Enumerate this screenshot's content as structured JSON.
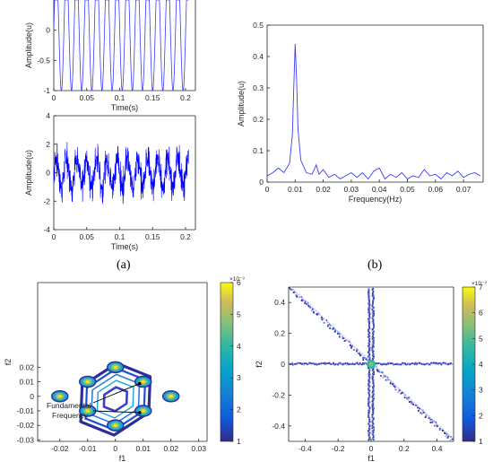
{
  "panel_labels": {
    "a": "(a)",
    "b": "(b)"
  },
  "chart_data": [
    {
      "id": "a-top",
      "type": "line",
      "xlabel": "Time(s)",
      "ylabel": "Amplitude(u)",
      "xlim": [
        0,
        0.215
      ],
      "ylim": [
        -1,
        0.5
      ],
      "xticks": [
        0,
        0.05,
        0.1,
        0.15,
        0.2
      ],
      "xtick_labels": [
        "0",
        "0.05",
        "0.1",
        "0.15",
        "0.2"
      ],
      "yticks": [
        -1,
        -0.5,
        0
      ],
      "ytick_labels": [
        "-1",
        "-0.5",
        "0"
      ],
      "signal": {
        "kind": "sine",
        "amplitude": 1,
        "period_s": 0.0154,
        "duration_s": 0.205
      },
      "color": "#3b3bff"
    },
    {
      "id": "a-bottom",
      "type": "line",
      "xlabel": "Time(s)",
      "ylabel": "Amplitude(u)",
      "xlim": [
        0,
        0.215
      ],
      "ylim": [
        -4,
        4
      ],
      "xticks": [
        0,
        0.05,
        0.1,
        0.15,
        0.2
      ],
      "xtick_labels": [
        "0",
        "0.05",
        "0.1",
        "0.15",
        "0.2"
      ],
      "yticks": [
        -4,
        -2,
        0,
        2,
        4
      ],
      "ytick_labels": [
        "-4",
        "-2",
        "0",
        "2",
        "4"
      ],
      "signal": {
        "kind": "noisy-sine",
        "amplitude": 1,
        "period_s": 0.0154,
        "noise_amplitude": 0.85,
        "duration_s": 0.205
      },
      "color": "#0000ff"
    },
    {
      "id": "b",
      "type": "line",
      "xlabel": "Frequency(Hz)",
      "ylabel": "Amplitude(u)",
      "xlim": [
        0,
        0.077
      ],
      "ylim": [
        0,
        0.5
      ],
      "xticks": [
        0,
        0.01,
        0.02,
        0.03,
        0.04,
        0.05,
        0.06,
        0.07
      ],
      "xtick_labels": [
        "0",
        "0.01",
        "0.02",
        "0.03",
        "0.04",
        "0.05",
        "0.06",
        "0.07"
      ],
      "yticks": [
        0,
        0.1,
        0.2,
        0.3,
        0.4,
        0.5
      ],
      "ytick_labels": [
        "0",
        "0.1",
        "0.2",
        "0.3",
        "0.4",
        "0.5"
      ],
      "x": [
        0,
        0.002,
        0.004,
        0.006,
        0.008,
        0.009,
        0.0095,
        0.01,
        0.0105,
        0.011,
        0.012,
        0.014,
        0.016,
        0.0175,
        0.0185,
        0.02,
        0.022,
        0.024,
        0.026,
        0.028,
        0.03,
        0.032,
        0.034,
        0.036,
        0.038,
        0.04,
        0.042,
        0.044,
        0.046,
        0.048,
        0.05,
        0.052,
        0.054,
        0.056,
        0.058,
        0.06,
        0.062,
        0.064,
        0.066,
        0.068,
        0.07,
        0.072,
        0.074,
        0.076
      ],
      "y": [
        0.02,
        0.03,
        0.045,
        0.03,
        0.06,
        0.15,
        0.3,
        0.44,
        0.33,
        0.17,
        0.07,
        0.03,
        0.025,
        0.055,
        0.025,
        0.04,
        0.015,
        0.025,
        0.01,
        0.02,
        0.03,
        0.015,
        0.03,
        0.01,
        0.035,
        0.045,
        0.01,
        0.025,
        0.015,
        0.03,
        0.01,
        0.02,
        0.015,
        0.04,
        0.02,
        0.025,
        0.01,
        0.03,
        0.02,
        0.035,
        0.015,
        0.025,
        0.03,
        0.02
      ],
      "color": "#3b3bff"
    },
    {
      "id": "c",
      "type": "heatmap",
      "xlabel": "f1",
      "ylabel": "f2",
      "xlim": [
        -0.028,
        0.033
      ],
      "ylim": [
        -0.031,
        0.027
      ],
      "xticks": [
        -0.02,
        -0.01,
        0,
        0.01,
        0.02,
        0.03
      ],
      "xtick_labels": [
        "-0.02",
        "-0.01",
        "0",
        "0.01",
        "0.02",
        "0.03"
      ],
      "yticks": [
        -0.03,
        -0.02,
        -0.01,
        0,
        0.01,
        0.02
      ],
      "ytick_labels": [
        "-0.03",
        "-0.02",
        "-0.01",
        "0",
        "0.01",
        "0.02"
      ],
      "colorbar": {
        "min": 1,
        "max": 6,
        "exponent": "×10⁻³",
        "ticks": [
          1,
          2,
          3,
          4,
          5,
          6
        ],
        "tick_labels": [
          "1",
          "2",
          "3",
          "4",
          "5",
          "6"
        ]
      },
      "hotspots": [
        [
          -0.01,
          0.01
        ],
        [
          0.01,
          0.01
        ],
        [
          -0.02,
          0
        ],
        [
          0.02,
          0
        ],
        [
          -0.01,
          -0.01
        ],
        [
          0.01,
          -0.01
        ],
        [
          0,
          0.02
        ],
        [
          0,
          -0.02
        ]
      ],
      "annotation": {
        "lines": [
          "Fundamental",
          "Frequency"
        ],
        "targets": [
          [
            0.01,
            0.01
          ],
          [
            0.01,
            -0.01
          ]
        ]
      }
    },
    {
      "id": "d",
      "type": "heatmap",
      "xlabel": "f1",
      "ylabel": "f2",
      "xlim": [
        -0.5,
        0.5
      ],
      "ylim": [
        -0.5,
        0.5
      ],
      "xticks": [
        -0.4,
        -0.2,
        0,
        0.2,
        0.4
      ],
      "xtick_labels": [
        "-0.4",
        "-0.2",
        "0",
        "0.2",
        "0.4"
      ],
      "yticks": [
        -0.4,
        -0.2,
        0,
        0.2,
        0.4
      ],
      "ytick_labels": [
        "-0.4",
        "-0.2",
        "0",
        "0.2",
        "0.4"
      ],
      "colorbar": {
        "min": 1,
        "max": 7,
        "exponent": "×10⁻³",
        "ticks": [
          1,
          2,
          3,
          4,
          5,
          6,
          7
        ],
        "tick_labels": [
          "1",
          "2",
          "3",
          "4",
          "5",
          "6",
          "7"
        ]
      }
    }
  ]
}
